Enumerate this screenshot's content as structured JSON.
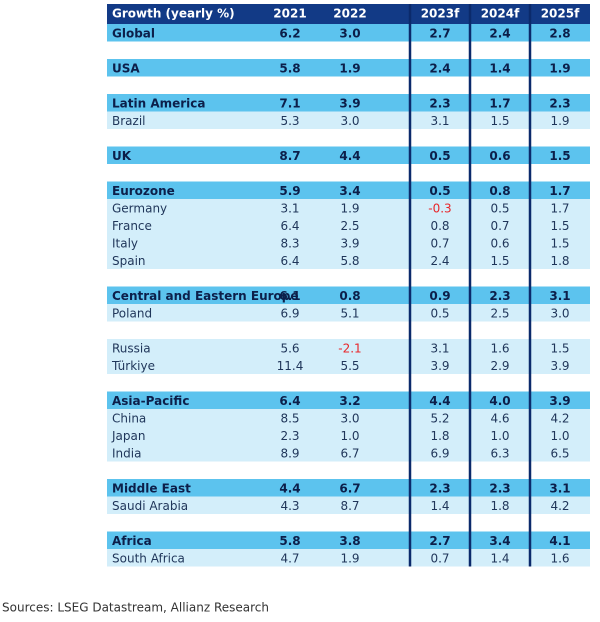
{
  "table": {
    "header": [
      "Growth (yearly %)",
      "2021",
      "2022",
      "2023f",
      "2024f",
      "2025f"
    ],
    "groups": [
      {
        "header": {
          "label": "Global",
          "values": [
            "6.2",
            "3.0",
            "2.7",
            "2.4",
            "2.8"
          ]
        },
        "rows": []
      },
      {
        "header": {
          "label": "USA",
          "values": [
            "5.8",
            "1.9",
            "2.4",
            "1.4",
            "1.9"
          ]
        },
        "rows": []
      },
      {
        "header": {
          "label": "Latin America",
          "values": [
            "7.1",
            "3.9",
            "2.3",
            "1.7",
            "2.3"
          ]
        },
        "rows": [
          {
            "label": "Brazil",
            "values": [
              "5.3",
              "3.0",
              "3.1",
              "1.5",
              "1.9"
            ]
          }
        ]
      },
      {
        "header": {
          "label": "UK",
          "values": [
            "8.7",
            "4.4",
            "0.5",
            "0.6",
            "1.5"
          ]
        },
        "rows": []
      },
      {
        "header": {
          "label": "Eurozone",
          "values": [
            "5.9",
            "3.4",
            "0.5",
            "0.8",
            "1.7"
          ]
        },
        "rows": [
          {
            "label": "Germany",
            "values": [
              "3.1",
              "1.9",
              "-0.3",
              "0.5",
              "1.7"
            ]
          },
          {
            "label": "France",
            "values": [
              "6.4",
              "2.5",
              "0.8",
              "0.7",
              "1.5"
            ]
          },
          {
            "label": "Italy",
            "values": [
              "8.3",
              "3.9",
              "0.7",
              "0.6",
              "1.5"
            ]
          },
          {
            "label": "Spain",
            "values": [
              "6.4",
              "5.8",
              "2.4",
              "1.5",
              "1.8"
            ]
          }
        ]
      },
      {
        "header": {
          "label": "Central and Eastern Europe",
          "values": [
            "6.1",
            "0.8",
            "0.9",
            "2.3",
            "3.1"
          ]
        },
        "rows": [
          {
            "label": "Poland",
            "values": [
              "6.9",
              "5.1",
              "0.5",
              "2.5",
              "3.0"
            ]
          }
        ]
      },
      {
        "rows": [
          {
            "label": "Russia",
            "values": [
              "5.6",
              "-2.1",
              "3.1",
              "1.6",
              "1.5"
            ]
          },
          {
            "label": "Türkiye",
            "values": [
              "11.4",
              "5.5",
              "3.9",
              "2.9",
              "3.9"
            ]
          }
        ]
      },
      {
        "header": {
          "label": "Asia-Pacific",
          "values": [
            "6.4",
            "3.2",
            "4.4",
            "4.0",
            "3.9"
          ]
        },
        "rows": [
          {
            "label": "China",
            "values": [
              "8.5",
              "3.0",
              "5.2",
              "4.6",
              "4.2"
            ]
          },
          {
            "label": "Japan",
            "values": [
              "2.3",
              "1.0",
              "1.8",
              "1.0",
              "1.0"
            ]
          },
          {
            "label": "India",
            "values": [
              "8.9",
              "6.7",
              "6.9",
              "6.3",
              "6.5"
            ]
          }
        ]
      },
      {
        "header": {
          "label": "Middle East",
          "values": [
            "4.4",
            "6.7",
            "2.3",
            "2.3",
            "3.1"
          ]
        },
        "rows": [
          {
            "label": "Saudi Arabia",
            "values": [
              "4.3",
              "8.7",
              "1.4",
              "1.8",
              "4.2"
            ]
          }
        ]
      },
      {
        "header": {
          "label": "Africa",
          "values": [
            "5.8",
            "3.8",
            "2.7",
            "3.4",
            "4.1"
          ]
        },
        "rows": [
          {
            "label": "South Africa",
            "values": [
              "4.7",
              "1.9",
              "0.7",
              "1.4",
              "1.6"
            ]
          }
        ]
      }
    ]
  },
  "source": "Sources: LSEG Datastream, Allianz Research"
}
